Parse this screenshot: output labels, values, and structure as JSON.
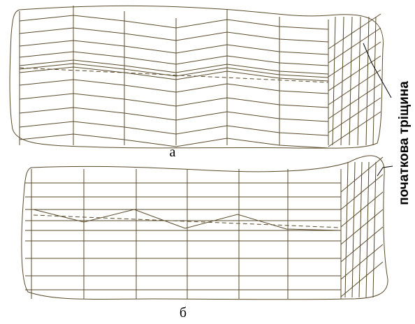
{
  "labels": {
    "top": "а",
    "bottom": "б",
    "crack": "початкова тріщина"
  }
}
